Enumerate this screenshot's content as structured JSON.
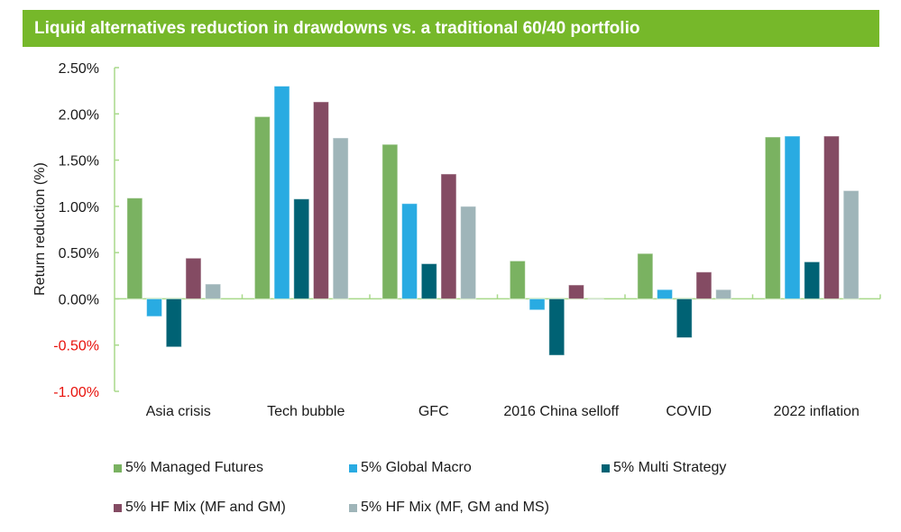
{
  "header": {
    "title": "Liquid alternatives reduction in drawdowns vs. a traditional 60/40 portfolio"
  },
  "colors": {
    "title_bg": "#76b82a",
    "axis": "#a8d98a",
    "negative_tick": "#e8120c"
  },
  "chart_data": {
    "type": "bar",
    "title": "Liquid alternatives reduction in drawdowns vs. a traditional 60/40 portfolio",
    "xlabel": "",
    "ylabel": "Return reduction (%)",
    "ylim": [
      -1.0,
      2.5
    ],
    "yticks": [
      2.5,
      2.0,
      1.5,
      1.0,
      0.5,
      0.0,
      -0.5,
      -1.0
    ],
    "ytick_labels": [
      "2.50%",
      "2.00%",
      "1.50%",
      "1.00%",
      "0.50%",
      "0.00%",
      "-0.50%",
      "-1.00%"
    ],
    "grid": false,
    "legend_position": "bottom",
    "categories": [
      "Asia crisis",
      "Tech bubble",
      "GFC",
      "2016 China selloff",
      "COVID",
      "2022 inflation"
    ],
    "series": [
      {
        "name": "5% Managed Futures",
        "color": "#7ab261",
        "values": [
          1.09,
          1.97,
          1.67,
          0.41,
          0.49,
          1.75
        ]
      },
      {
        "name": "5% Global Macro",
        "color": "#29abe2",
        "values": [
          -0.19,
          2.3,
          1.03,
          -0.12,
          0.1,
          1.76
        ]
      },
      {
        "name": "5% Multi Strategy",
        "color": "#006274",
        "values": [
          -0.52,
          1.08,
          0.38,
          -0.61,
          -0.42,
          0.4
        ]
      },
      {
        "name": "5% HF Mix (MF and GM)",
        "color": "#844b63",
        "values": [
          0.44,
          2.13,
          1.35,
          0.15,
          0.29,
          1.76
        ]
      },
      {
        "name": "5% HF Mix (MF, GM and MS)",
        "color": "#9fb5b9",
        "values": [
          0.16,
          1.74,
          1.0,
          0.0,
          0.1,
          1.17
        ]
      }
    ]
  }
}
